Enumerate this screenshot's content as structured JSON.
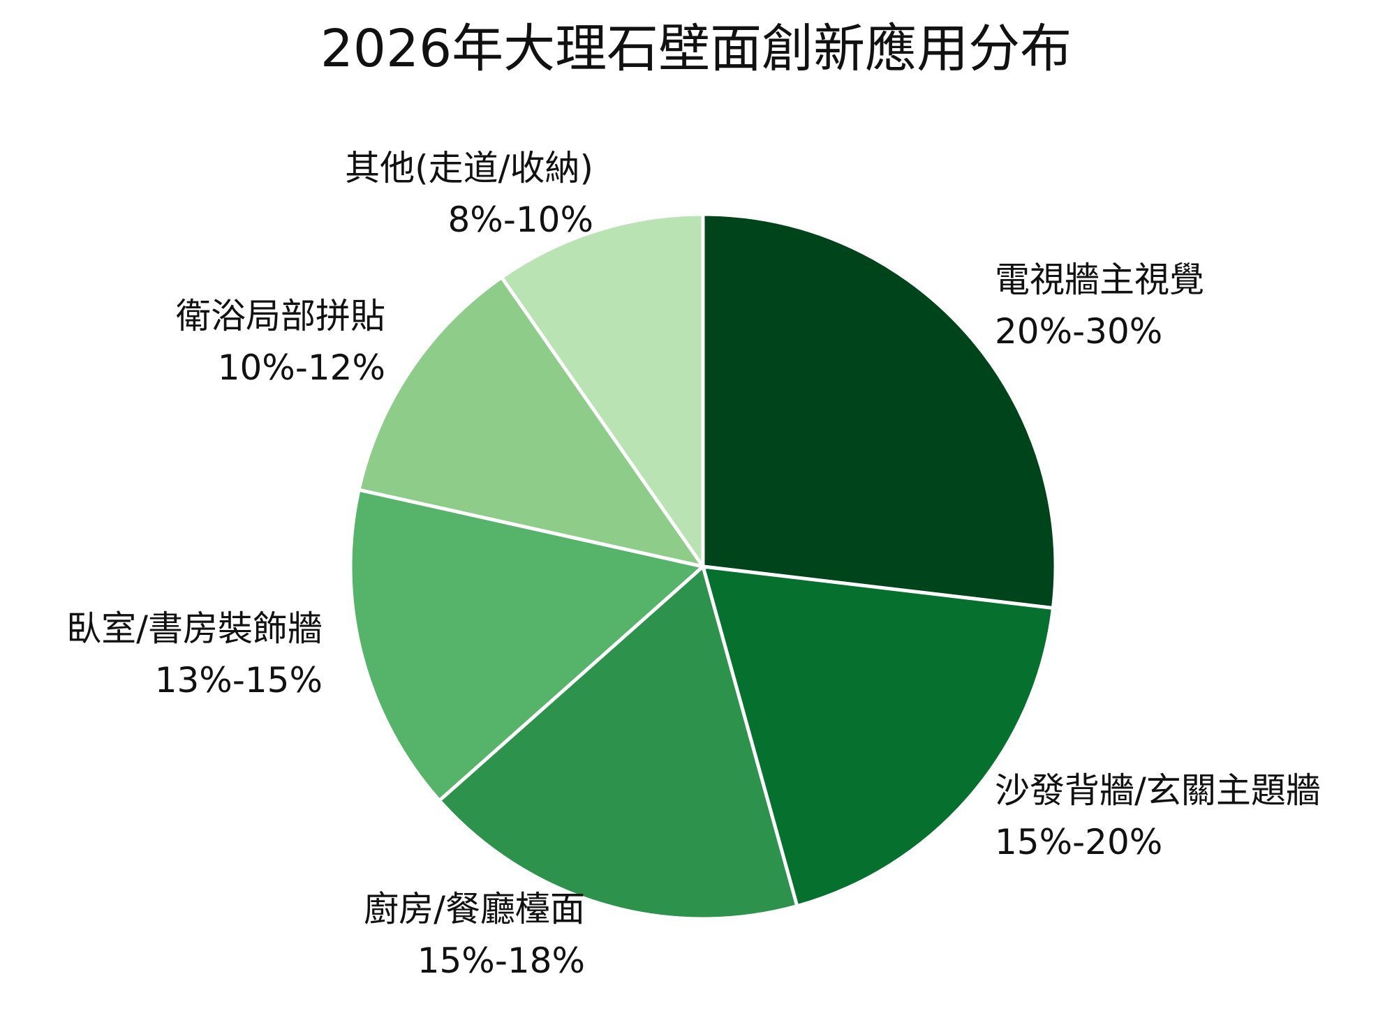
{
  "chart_data": {
    "type": "pie",
    "title": "2026年大理石壁面創新應用分布",
    "start_angle_deg": 0,
    "direction": "clockwise",
    "slices": [
      {
        "label": "電視牆主視覺",
        "range_text": "20%-30%",
        "value": 25,
        "color": "#00441b"
      },
      {
        "label": "沙發背牆/玄關主題牆",
        "range_text": "15%-20%",
        "value": 17.5,
        "color": "#06702f"
      },
      {
        "label": "廚房/餐廳檯面",
        "range_text": "15%-18%",
        "value": 16.5,
        "color": "#2c924c"
      },
      {
        "label": "臥室/書房裝飾牆",
        "range_text": "13%-15%",
        "value": 14,
        "color": "#56b46a"
      },
      {
        "label": "衛浴局部拼貼",
        "range_text": "10%-12%",
        "value": 11,
        "color": "#8dcd89"
      },
      {
        "label": "其他(走道/收納)",
        "range_text": "8%-10%",
        "value": 9,
        "color": "#b9e3b2"
      }
    ]
  }
}
